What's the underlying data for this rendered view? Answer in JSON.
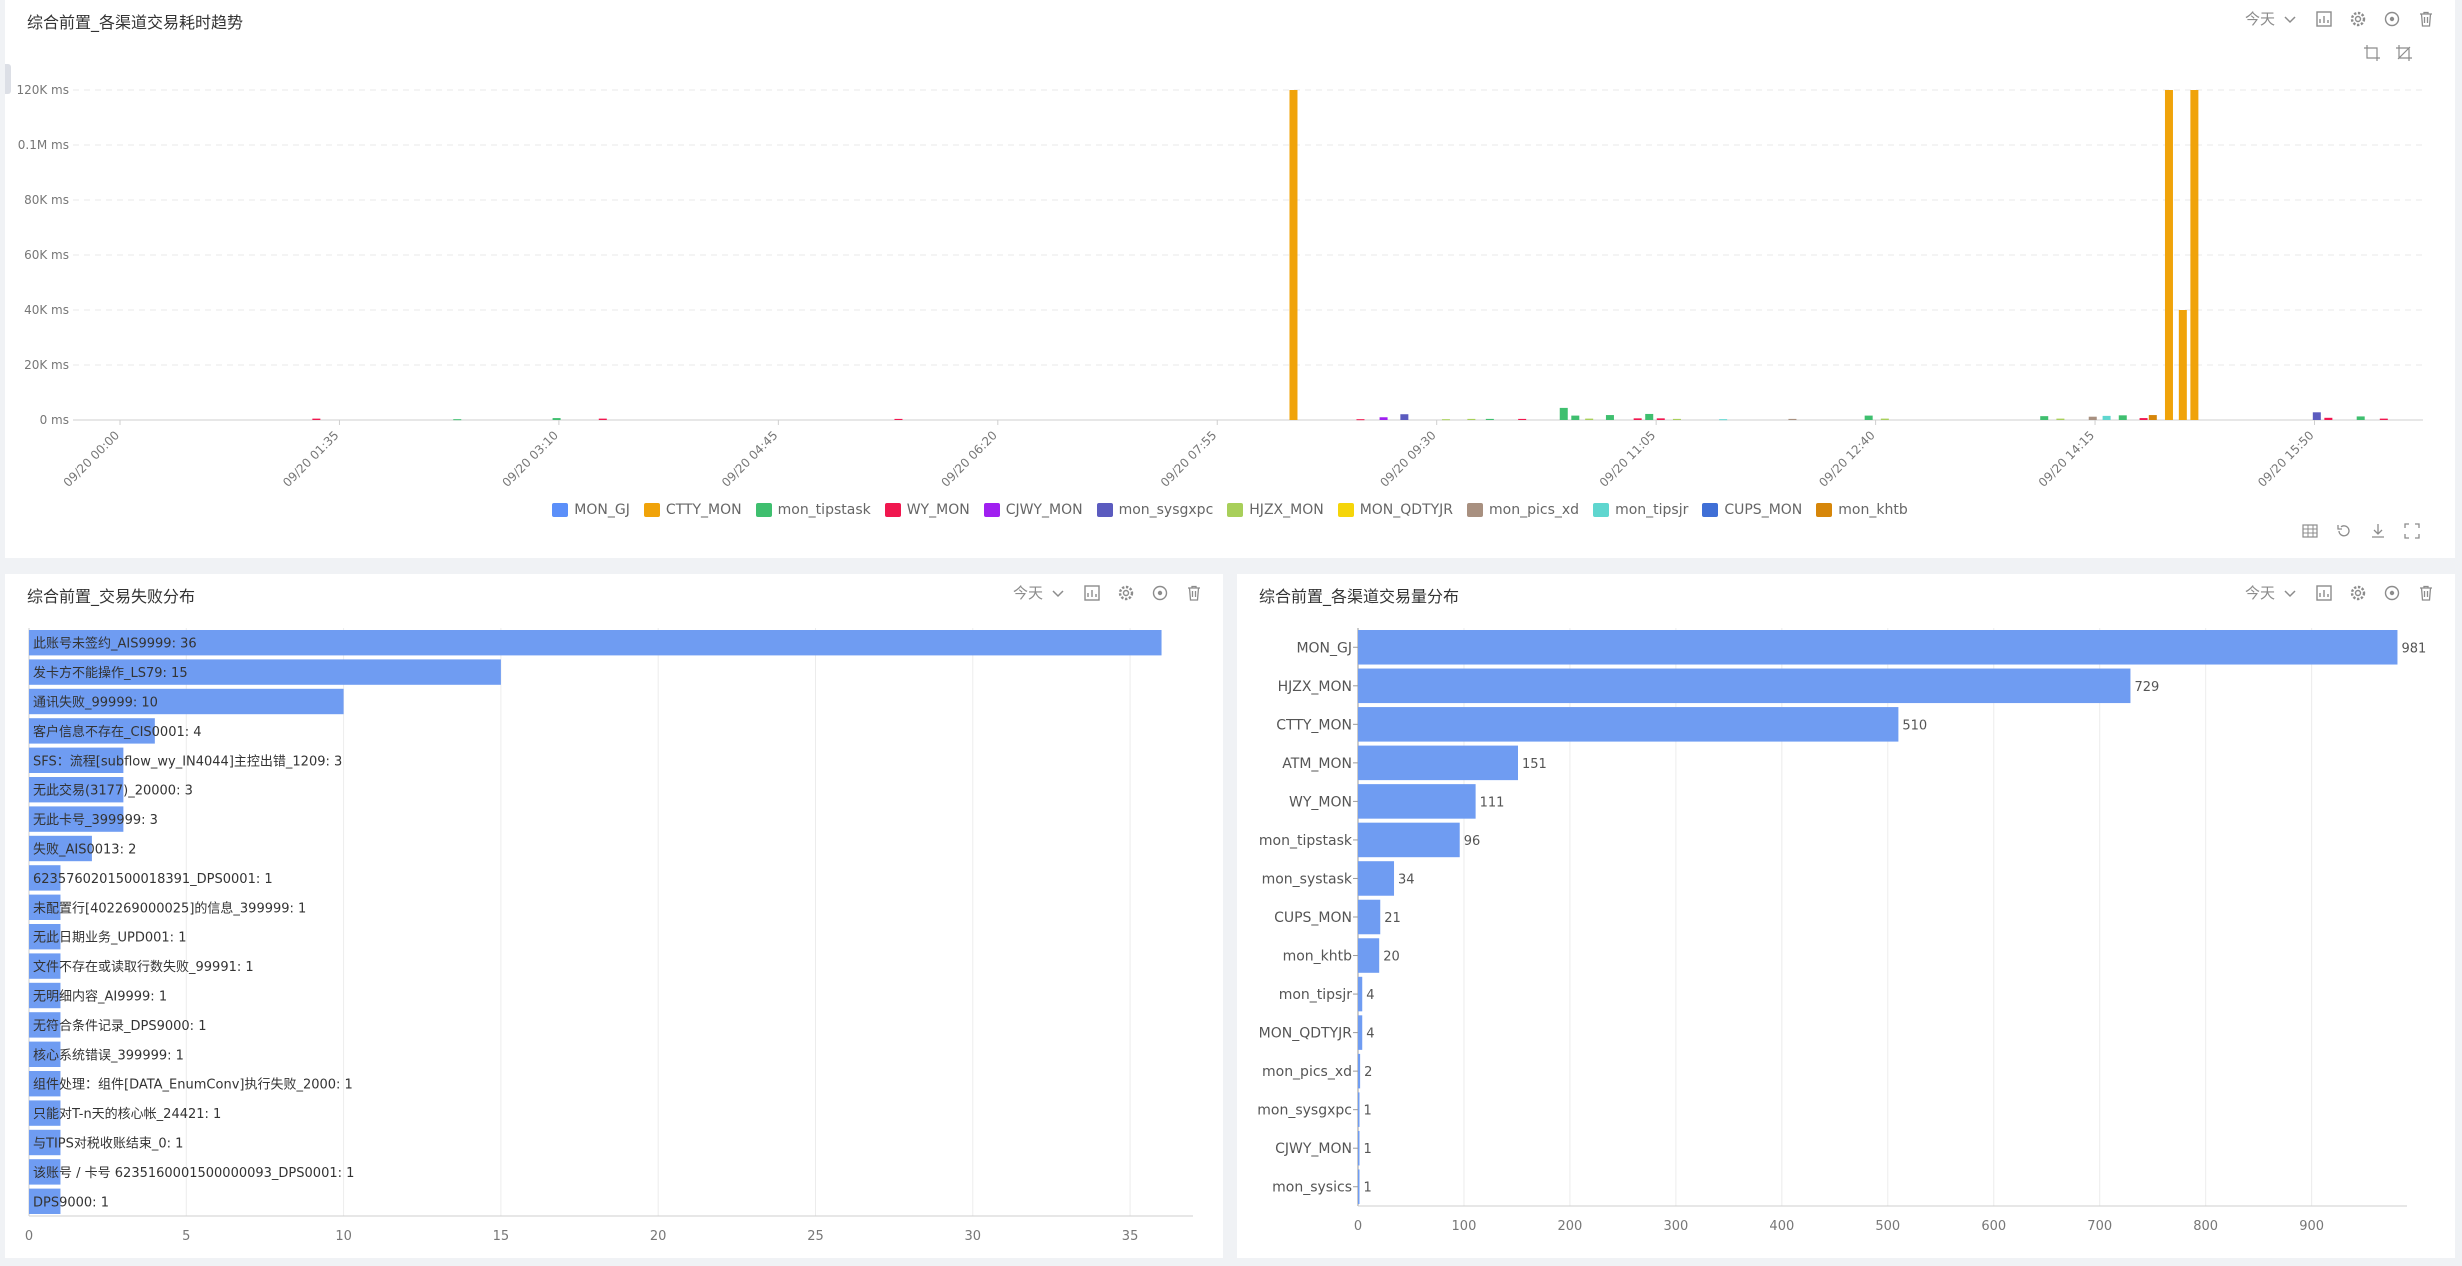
{
  "panels": {
    "trend": {
      "title": "综合前置_各渠道交易耗时趋势",
      "range_label": "今天"
    },
    "fail": {
      "title": "综合前置_交易失败分布",
      "range_label": "今天"
    },
    "volume": {
      "title": "综合前置_各渠道交易量分布",
      "range_label": "今天"
    }
  },
  "icons": {
    "toolbar": [
      "chart-type-icon",
      "settings-gear-icon",
      "target-icon",
      "delete-trash-icon"
    ],
    "trend_top": [
      "zoom-select-icon",
      "zoom-reset-icon"
    ],
    "trend_bottom": [
      "data-view-table-icon",
      "restore-icon",
      "download-icon",
      "fullscreen-icon"
    ]
  },
  "colors": {
    "MON_GJ": "#5b8ff9",
    "CTTY_MON": "#f0a30a",
    "mon_tipstask": "#3fbf6f",
    "WY_MON": "#f0174f",
    "CJWY_MON": "#a020f0",
    "mon_sysgxpc": "#5b5bbf",
    "HJZX_MON": "#a8cf5a",
    "MON_QDTYJR": "#f5d50a",
    "mon_pics_xd": "#a89080",
    "mon_tipsjr": "#5fd6cf",
    "CUPS_MON": "#3f6fd6",
    "mon_khtb": "#d6860a",
    "bar": "#6f9cf2"
  },
  "chart_data": [
    {
      "type": "bar",
      "title": "综合前置_各渠道交易耗时趋势",
      "y_tick_labels": [
        "0 ms",
        "20K ms",
        "40K ms",
        "60K ms",
        "80K ms",
        "0.1M ms",
        "120K ms"
      ],
      "ylim": [
        0,
        120000
      ],
      "x_tick_labels": [
        "09/20 00:00",
        "09/20 01:35",
        "09/20 03:10",
        "09/20 04:45",
        "09/20 06:20",
        "09/20 07:55",
        "09/20 09:30",
        "09/20 11:05",
        "09/20 12:40",
        "09/20 14:15",
        "09/20 15:50"
      ],
      "x_range_minutes": [
        0,
        1000
      ],
      "grid": true,
      "legend_position": "bottom",
      "series_names": [
        "MON_GJ",
        "CTTY_MON",
        "mon_tipstask",
        "WY_MON",
        "CJWY_MON",
        "mon_sysgxpc",
        "HJZX_MON",
        "MON_QDTYJR",
        "mon_pics_xd",
        "mon_tipsjr",
        "CUPS_MON",
        "mon_khtb"
      ],
      "bars": [
        {
          "s": "WY_MON",
          "t": 85,
          "v": 500
        },
        {
          "s": "mon_tipstask",
          "t": 146,
          "v": 300
        },
        {
          "s": "mon_tipstask",
          "t": 189,
          "v": 700
        },
        {
          "s": "WY_MON",
          "t": 209,
          "v": 500
        },
        {
          "s": "WY_MON",
          "t": 337,
          "v": 400
        },
        {
          "s": "CTTY_MON",
          "t": 508,
          "v": 120000
        },
        {
          "s": "WY_MON",
          "t": 537,
          "v": 300
        },
        {
          "s": "CJWY_MON",
          "t": 547,
          "v": 1000
        },
        {
          "s": "mon_sysgxpc",
          "t": 556,
          "v": 2100
        },
        {
          "s": "HJZX_MON",
          "t": 574,
          "v": 300
        },
        {
          "s": "HJZX_MON",
          "t": 585,
          "v": 400
        },
        {
          "s": "mon_tipstask",
          "t": 593,
          "v": 400
        },
        {
          "s": "WY_MON",
          "t": 607,
          "v": 400
        },
        {
          "s": "mon_tipstask",
          "t": 625,
          "v": 4400
        },
        {
          "s": "mon_tipstask",
          "t": 630,
          "v": 1600
        },
        {
          "s": "HJZX_MON",
          "t": 636,
          "v": 500
        },
        {
          "s": "mon_tipstask",
          "t": 645,
          "v": 1800
        },
        {
          "s": "WY_MON",
          "t": 657,
          "v": 600
        },
        {
          "s": "mon_tipstask",
          "t": 662,
          "v": 2200
        },
        {
          "s": "WY_MON",
          "t": 667,
          "v": 600
        },
        {
          "s": "HJZX_MON",
          "t": 674,
          "v": 400
        },
        {
          "s": "mon_tipsjr",
          "t": 694,
          "v": 300
        },
        {
          "s": "mon_pics_xd",
          "t": 724,
          "v": 400
        },
        {
          "s": "mon_tipstask",
          "t": 757,
          "v": 1600
        },
        {
          "s": "HJZX_MON",
          "t": 764,
          "v": 500
        },
        {
          "s": "mon_tipstask",
          "t": 833,
          "v": 1400
        },
        {
          "s": "HJZX_MON",
          "t": 840,
          "v": 500
        },
        {
          "s": "mon_pics_xd",
          "t": 854,
          "v": 1200
        },
        {
          "s": "mon_tipsjr",
          "t": 860,
          "v": 1500
        },
        {
          "s": "mon_tipstask",
          "t": 867,
          "v": 1700
        },
        {
          "s": "WY_MON",
          "t": 876,
          "v": 700
        },
        {
          "s": "mon_khtb",
          "t": 880,
          "v": 1800
        },
        {
          "s": "CTTY_MON",
          "t": 887,
          "v": 120000
        },
        {
          "s": "CTTY_MON",
          "t": 893,
          "v": 40000
        },
        {
          "s": "CTTY_MON",
          "t": 898,
          "v": 120000
        },
        {
          "s": "mon_sysgxpc",
          "t": 951,
          "v": 2800
        },
        {
          "s": "WY_MON",
          "t": 956,
          "v": 800
        },
        {
          "s": "mon_tipstask",
          "t": 970,
          "v": 1300
        },
        {
          "s": "WY_MON",
          "t": 980,
          "v": 500
        }
      ]
    },
    {
      "type": "bar",
      "orientation": "horizontal",
      "title": "综合前置_交易失败分布",
      "xlim": [
        0,
        37
      ],
      "x_ticks": [
        0,
        5,
        10,
        15,
        20,
        25,
        30,
        35
      ],
      "grid": true,
      "categories": [
        "此账号未签约_AIS9999",
        "发卡方不能操作_LS79",
        "通讯失败_99999",
        "客户信息不存在_CIS0001",
        "SFS：流程[subflow_wy_IN4044]主控出错_1209",
        "无此交易(3177)_20000",
        "无此卡号_399999",
        "失败_AIS0013",
        "6235760201500018391_DPS0001",
        "未配置行[402269000025]的信息_399999",
        "无此日期业务_UPD001",
        "文件不存在或读取行数失败_99991",
        "无明细内容_AI9999",
        "无符合条件记录_DPS9000",
        "核心系统错误_399999",
        "组件处理：组件[DATA_EnumConv]执行失败_2000",
        "只能对T-n天的核心帐_24421",
        "与TIPS对税收账结束_0",
        "该账号 / 卡号 6235160001500000093_DPS0001",
        "DPS9000"
      ],
      "values": [
        36,
        15,
        10,
        4,
        3,
        3,
        3,
        2,
        1,
        1,
        1,
        1,
        1,
        1,
        1,
        1,
        1,
        1,
        1,
        1
      ],
      "labels": [
        "此账号未签约_AIS9999: 36",
        "发卡方不能操作_LS79: 15",
        "通讯失败_99999: 10",
        "客户信息不存在_CIS0001: 4",
        "SFS：流程[subflow_wy_IN4044]主控出错_1209: 3",
        "无此交易(3177)_20000: 3",
        "无此卡号_399999: 3",
        "失败_AIS0013: 2",
        "6235760201500018391_DPS0001: 1",
        "未配置行[402269000025]的信息_399999: 1",
        "无此日期业务_UPD001: 1",
        "文件不存在或读取行数失败_99991: 1",
        "无明细内容_AI9999: 1",
        "无符合条件记录_DPS9000: 1",
        "核心系统错误_399999: 1",
        "组件处理：组件[DATA_EnumConv]执行失败_2000: 1",
        "只能对T-n天的核心帐_24421: 1",
        "与TIPS对税收账结束_0: 1",
        "该账号 / 卡号 6235160001500000093_DPS0001: 1",
        "DPS9000: 1"
      ]
    },
    {
      "type": "bar",
      "orientation": "horizontal",
      "title": "综合前置_各渠道交易量分布",
      "xlim": [
        0,
        990
      ],
      "x_ticks": [
        0,
        100,
        200,
        300,
        400,
        500,
        600,
        700,
        800,
        900
      ],
      "grid": true,
      "categories": [
        "MON_GJ",
        "HJZX_MON",
        "CTTY_MON",
        "ATM_MON",
        "WY_MON",
        "mon_tipstask",
        "mon_systask",
        "CUPS_MON",
        "mon_khtb",
        "mon_tipsjr",
        "MON_QDTYJR",
        "mon_pics_xd",
        "mon_sysgxpc",
        "CJWY_MON",
        "mon_sysics"
      ],
      "values": [
        981,
        729,
        510,
        151,
        111,
        96,
        34,
        21,
        20,
        4,
        4,
        2,
        1,
        1,
        1
      ]
    }
  ]
}
